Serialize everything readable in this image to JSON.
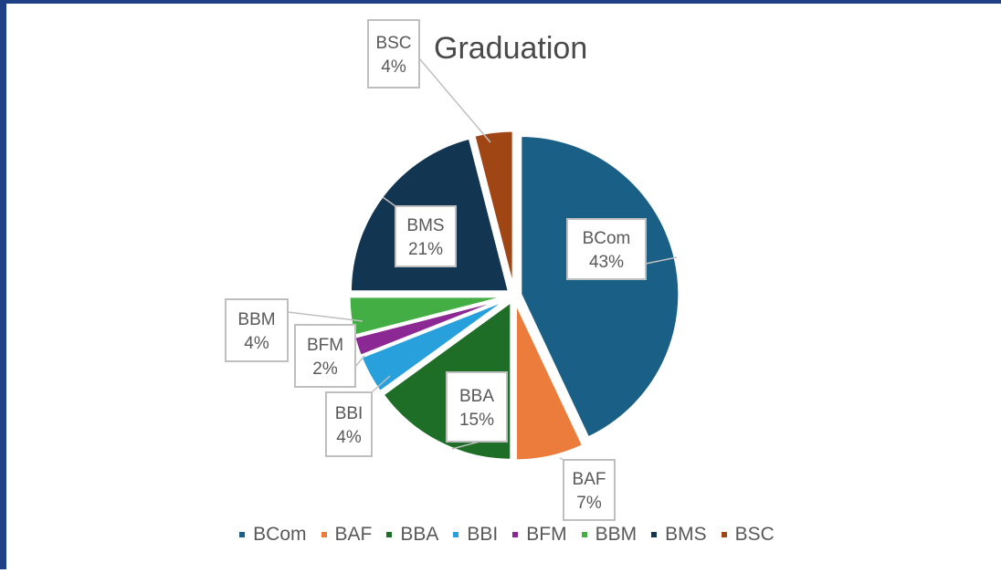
{
  "chart_data": {
    "type": "pie",
    "title": "Graduation",
    "categories": [
      "BCom",
      "BAF",
      "BBA",
      "BBI",
      "BFM",
      "BBM",
      "BMS",
      "BSC"
    ],
    "values": [
      43,
      7,
      15,
      4,
      2,
      4,
      21,
      4
    ],
    "value_labels": [
      "43%",
      "7%",
      "15%",
      "4%",
      "2%",
      "4%",
      "21%",
      "4%"
    ],
    "colors": [
      "#1a5f86",
      "#ec7c3c",
      "#1e6e28",
      "#28a0dc",
      "#8c2893",
      "#43ae43",
      "#123552",
      "#a04614"
    ],
    "exploded": true,
    "start_angle_deg": 0,
    "direction": "clockwise",
    "legend_position": "bottom"
  }
}
